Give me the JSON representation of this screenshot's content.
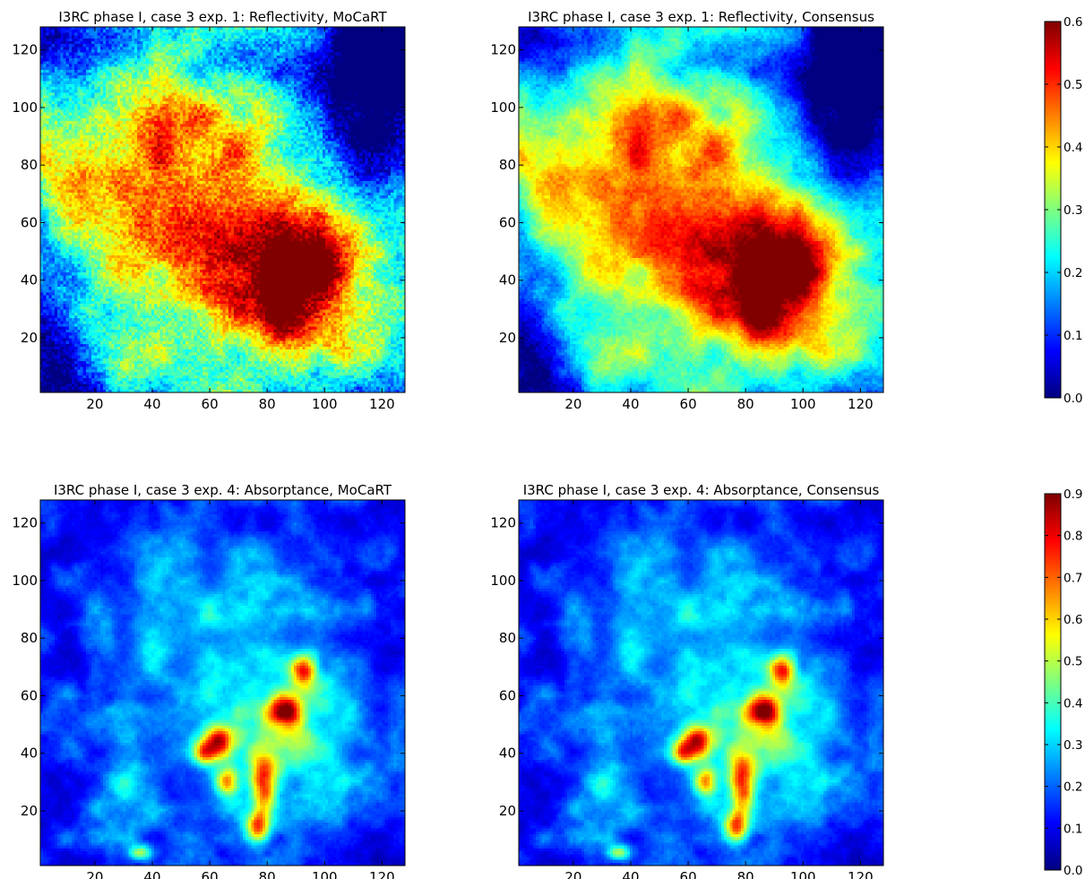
{
  "figure": {
    "colormap": "jet",
    "colormap_stops": [
      "#00007f",
      "#0000ff",
      "#007fff",
      "#00ffff",
      "#7fff7f",
      "#ffff00",
      "#ff7f00",
      "#ff0000",
      "#7f0000"
    ]
  },
  "chart_data": [
    {
      "type": "heatmap",
      "title": "I3RC phase I, case 3 exp. 1: Reflectivity, MoCaRT",
      "xlabel": "",
      "ylabel": "",
      "xlim": [
        1,
        128
      ],
      "ylim": [
        1,
        128
      ],
      "xticks": [
        "20",
        "40",
        "60",
        "80",
        "100",
        "120"
      ],
      "yticks": [
        "20",
        "40",
        "60",
        "80",
        "100",
        "120"
      ],
      "clim": [
        0,
        0.6
      ],
      "field": "reflectivity",
      "features": [
        {
          "x": 32,
          "y": 80,
          "sx": 28,
          "sy": 25,
          "v": 0.2
        },
        {
          "x": 60,
          "y": 95,
          "sx": 18,
          "sy": 12,
          "v": 0.08
        },
        {
          "x": 45,
          "y": 55,
          "sx": 22,
          "sy": 30,
          "v": 0.1
        },
        {
          "x": 78,
          "y": 42,
          "sx": 30,
          "sy": 28,
          "v": 0.12
        },
        {
          "x": 95,
          "y": 45,
          "sx": 16,
          "sy": 18,
          "v": 0.3
        },
        {
          "x": 68,
          "y": 40,
          "sx": 10,
          "sy": 10,
          "v": 0.14
        },
        {
          "x": 92,
          "y": 25,
          "sx": 11,
          "sy": 8,
          "v": 0.12
        },
        {
          "x": 103,
          "y": 55,
          "sx": 9,
          "sy": 8,
          "v": 0.1
        },
        {
          "x": 12,
          "y": 118,
          "sx": 14,
          "sy": 10,
          "v": -0.2
        },
        {
          "x": 6,
          "y": 15,
          "sx": 10,
          "sy": 22,
          "v": -0.2
        },
        {
          "x": 118,
          "y": 110,
          "sx": 14,
          "sy": 25,
          "v": -0.3
        },
        {
          "x": 72,
          "y": 118,
          "sx": 10,
          "sy": 6,
          "v": -0.15
        }
      ]
    },
    {
      "type": "heatmap",
      "title": "I3RC phase I, case 3 exp. 1: Reflectivity, Consensus",
      "xlabel": "",
      "ylabel": "",
      "xlim": [
        1,
        128
      ],
      "ylim": [
        1,
        128
      ],
      "xticks": [
        "20",
        "40",
        "60",
        "80",
        "100",
        "120"
      ],
      "yticks": [
        "20",
        "40",
        "60",
        "80",
        "100",
        "120"
      ],
      "clim": [
        0,
        0.6
      ],
      "field": "reflectivity",
      "features": [
        {
          "x": 32,
          "y": 80,
          "sx": 28,
          "sy": 25,
          "v": 0.2
        },
        {
          "x": 60,
          "y": 95,
          "sx": 18,
          "sy": 12,
          "v": 0.08
        },
        {
          "x": 45,
          "y": 55,
          "sx": 22,
          "sy": 30,
          "v": 0.1
        },
        {
          "x": 78,
          "y": 42,
          "sx": 30,
          "sy": 28,
          "v": 0.12
        },
        {
          "x": 95,
          "y": 45,
          "sx": 16,
          "sy": 18,
          "v": 0.3
        },
        {
          "x": 68,
          "y": 40,
          "sx": 10,
          "sy": 10,
          "v": 0.14
        },
        {
          "x": 92,
          "y": 25,
          "sx": 11,
          "sy": 8,
          "v": 0.12
        },
        {
          "x": 103,
          "y": 55,
          "sx": 9,
          "sy": 8,
          "v": 0.1
        },
        {
          "x": 12,
          "y": 118,
          "sx": 14,
          "sy": 10,
          "v": -0.2
        },
        {
          "x": 6,
          "y": 15,
          "sx": 10,
          "sy": 22,
          "v": -0.2
        },
        {
          "x": 118,
          "y": 110,
          "sx": 14,
          "sy": 25,
          "v": -0.3
        },
        {
          "x": 72,
          "y": 118,
          "sx": 10,
          "sy": 6,
          "v": -0.15
        }
      ]
    },
    {
      "type": "heatmap",
      "title": "I3RC phase I, case 3 exp. 4: Absorptance, MoCaRT",
      "xlabel": "",
      "ylabel": "",
      "xlim": [
        1,
        128
      ],
      "ylim": [
        1,
        128
      ],
      "xticks": [
        "20",
        "40",
        "60",
        "80",
        "100",
        "120"
      ],
      "yticks": [
        "20",
        "40",
        "60",
        "80",
        "100",
        "120"
      ],
      "clim": [
        0,
        0.9
      ],
      "field": "absorptance",
      "features": [
        {
          "x": 55,
          "y": 95,
          "sx": 30,
          "sy": 22,
          "v": 0.12
        },
        {
          "x": 65,
          "y": 50,
          "sx": 25,
          "sy": 28,
          "v": 0.15
        },
        {
          "x": 95,
          "y": 48,
          "sx": 16,
          "sy": 20,
          "v": 0.2
        },
        {
          "x": 63,
          "y": 44,
          "sx": 3.5,
          "sy": 4,
          "v": 0.55
        },
        {
          "x": 58,
          "y": 40,
          "sx": 3,
          "sy": 3,
          "v": 0.45
        },
        {
          "x": 66,
          "y": 30,
          "sx": 3,
          "sy": 4,
          "v": 0.4
        },
        {
          "x": 79,
          "y": 30,
          "sx": 3,
          "sy": 7,
          "v": 0.5
        },
        {
          "x": 77,
          "y": 14,
          "sx": 3,
          "sy": 4,
          "v": 0.55
        },
        {
          "x": 86,
          "y": 55,
          "sx": 4,
          "sy": 4,
          "v": 0.55
        },
        {
          "x": 93,
          "y": 68,
          "sx": 3,
          "sy": 4,
          "v": 0.45
        },
        {
          "x": 36,
          "y": 5,
          "sx": 3,
          "sy": 2,
          "v": 0.35
        },
        {
          "x": 30,
          "y": 25,
          "sx": 6,
          "sy": 12,
          "v": 0.15
        }
      ]
    },
    {
      "type": "heatmap",
      "title": "I3RC phase I, case 3 exp. 4: Absorptance, Consensus",
      "xlabel": "",
      "ylabel": "",
      "xlim": [
        1,
        128
      ],
      "ylim": [
        1,
        128
      ],
      "xticks": [
        "20",
        "40",
        "60",
        "80",
        "100",
        "120"
      ],
      "yticks": [
        "20",
        "40",
        "60",
        "80",
        "100",
        "120"
      ],
      "clim": [
        0,
        0.9
      ],
      "field": "absorptance",
      "features": [
        {
          "x": 55,
          "y": 95,
          "sx": 30,
          "sy": 22,
          "v": 0.12
        },
        {
          "x": 65,
          "y": 50,
          "sx": 25,
          "sy": 28,
          "v": 0.15
        },
        {
          "x": 95,
          "y": 48,
          "sx": 16,
          "sy": 20,
          "v": 0.2
        },
        {
          "x": 63,
          "y": 44,
          "sx": 3.5,
          "sy": 4,
          "v": 0.55
        },
        {
          "x": 58,
          "y": 40,
          "sx": 3,
          "sy": 3,
          "v": 0.45
        },
        {
          "x": 66,
          "y": 30,
          "sx": 3,
          "sy": 4,
          "v": 0.4
        },
        {
          "x": 79,
          "y": 30,
          "sx": 3,
          "sy": 7,
          "v": 0.5
        },
        {
          "x": 77,
          "y": 14,
          "sx": 3,
          "sy": 4,
          "v": 0.55
        },
        {
          "x": 86,
          "y": 55,
          "sx": 4,
          "sy": 4,
          "v": 0.55
        },
        {
          "x": 93,
          "y": 68,
          "sx": 3,
          "sy": 4,
          "v": 0.45
        },
        {
          "x": 36,
          "y": 5,
          "sx": 3,
          "sy": 2,
          "v": 0.35
        },
        {
          "x": 30,
          "y": 25,
          "sx": 6,
          "sy": 12,
          "v": 0.15
        }
      ]
    }
  ],
  "colorbars": [
    {
      "ticks": [
        "0.0",
        "0.1",
        "0.2",
        "0.3",
        "0.4",
        "0.5",
        "0.6"
      ],
      "range": [
        0,
        0.6
      ]
    },
    {
      "ticks": [
        "0.0",
        "0.1",
        "0.2",
        "0.3",
        "0.4",
        "0.5",
        "0.6",
        "0.7",
        "0.8",
        "0.9"
      ],
      "range": [
        0,
        0.9
      ]
    }
  ]
}
